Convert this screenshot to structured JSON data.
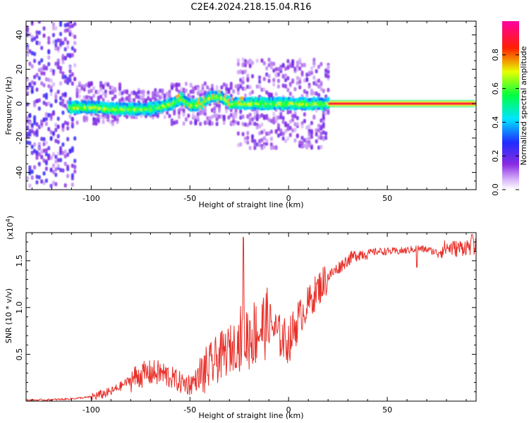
{
  "title": "C2E4.2024.218.15.04.R16",
  "colors": {
    "snr_line": "#e8302a",
    "axis": "#000000",
    "background": "#ffffff"
  },
  "chart_data": [
    {
      "type": "heatmap",
      "title": "C2E4.2024.218.15.04.R16",
      "xlabel": "Height of straight line (km)",
      "ylabel": "Frequency (Hz)",
      "xlim": [
        -133,
        95
      ],
      "ylim": [
        -50,
        48
      ],
      "xticks": [
        -100,
        -50,
        0,
        50
      ],
      "yticks": [
        -40,
        -20,
        0,
        20,
        40
      ],
      "colorbar": {
        "label": "Normalized spectral amplitude",
        "range": [
          0,
          1
        ],
        "ticks": [
          "0.0",
          "0.2",
          "0.4",
          "0.6",
          "0.8"
        ],
        "colormap": "rainbow (white-violet-blue-cyan-green-yellow-red-magenta)"
      },
      "ridge": [
        {
          "x": -110,
          "y": -2
        },
        {
          "x": -100,
          "y": -2
        },
        {
          "x": -90,
          "y": -3
        },
        {
          "x": -80,
          "y": -3
        },
        {
          "x": -70,
          "y": -3
        },
        {
          "x": -60,
          "y": 0
        },
        {
          "x": -55,
          "y": 3
        },
        {
          "x": -50,
          "y": -1
        },
        {
          "x": -45,
          "y": 0
        },
        {
          "x": -40,
          "y": 4
        },
        {
          "x": -35,
          "y": 4
        },
        {
          "x": -30,
          "y": 0
        },
        {
          "x": -20,
          "y": 0
        },
        {
          "x": -10,
          "y": 0
        },
        {
          "x": 0,
          "y": 0
        },
        {
          "x": 10,
          "y": 0
        },
        {
          "x": 20,
          "y": 0
        }
      ],
      "steady_tone": {
        "x_start": 20,
        "x_end": 95,
        "y": 0,
        "amplitude": 0.9
      },
      "grid": false
    },
    {
      "type": "line",
      "xlabel": "Height of straight line (km)",
      "ylabel": "SNR (10 * v/v)",
      "y_multiplier": "(x10",
      "y_multiplier_exp": "4",
      "y_multiplier_close": ")",
      "xlim": [
        -133,
        95
      ],
      "ylim": [
        0,
        18000
      ],
      "xticks": [
        -100,
        -50,
        0,
        50
      ],
      "yticks": [
        0.5,
        1.0,
        1.5
      ],
      "ytick_labels": [
        "0.5",
        "1.0",
        "1.5"
      ],
      "grid": false,
      "series": [
        {
          "color": "#e8302a",
          "x": [
            -133,
            -120,
            -110,
            -100,
            -95,
            -90,
            -85,
            -80,
            -75,
            -70,
            -65,
            -60,
            -55,
            -50,
            -45,
            -40,
            -35,
            -30,
            -25,
            -20,
            -15,
            -10,
            -5,
            0,
            5,
            10,
            15,
            20,
            25,
            30,
            35,
            40,
            45,
            50,
            55,
            60,
            65,
            70,
            75,
            80,
            85,
            90,
            95
          ],
          "y": [
            100,
            150,
            250,
            450,
            700,
            1000,
            1600,
            2300,
            2800,
            3000,
            3000,
            2600,
            2000,
            1800,
            2600,
            3600,
            4700,
            5500,
            6400,
            7000,
            7600,
            8500,
            7000,
            6300,
            8800,
            10400,
            12000,
            13300,
            14200,
            15100,
            15700,
            15800,
            16000,
            16000,
            16000,
            16100,
            16300,
            16200,
            15900,
            16400,
            16300,
            16500,
            16500
          ]
        }
      ]
    }
  ]
}
